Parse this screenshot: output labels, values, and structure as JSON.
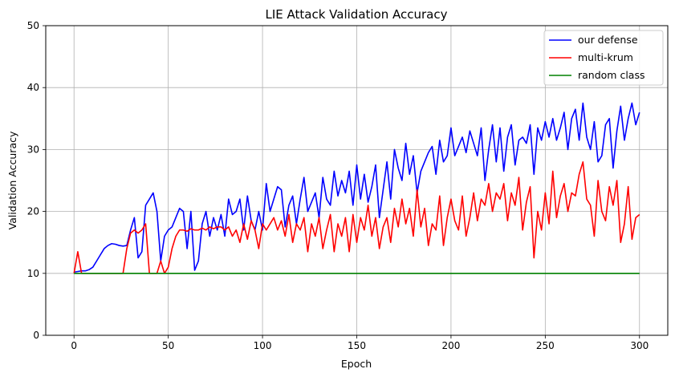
{
  "chart_data": {
    "type": "line",
    "title": "LIE Attack Validation Accuracy",
    "xlabel": "Epoch",
    "ylabel": "Validation Accuracy",
    "xlim": [
      -15,
      315
    ],
    "ylim": [
      0,
      50
    ],
    "xticks": [
      0,
      50,
      100,
      150,
      200,
      250,
      300
    ],
    "yticks": [
      0,
      10,
      20,
      30,
      40,
      50
    ],
    "grid": true,
    "legend_position": "top-right",
    "series": [
      {
        "name": "our defense",
        "color": "#0000ff",
        "x": [
          0,
          2,
          4,
          6,
          8,
          10,
          12,
          14,
          16,
          18,
          20,
          22,
          24,
          26,
          28,
          30,
          32,
          34,
          36,
          38,
          40,
          42,
          44,
          46,
          48,
          50,
          52,
          54,
          56,
          58,
          60,
          62,
          64,
          66,
          68,
          70,
          72,
          74,
          76,
          78,
          80,
          82,
          84,
          86,
          88,
          90,
          92,
          94,
          96,
          98,
          100,
          102,
          104,
          106,
          108,
          110,
          112,
          114,
          116,
          118,
          120,
          122,
          124,
          126,
          128,
          130,
          132,
          134,
          136,
          138,
          140,
          142,
          144,
          146,
          148,
          150,
          152,
          154,
          156,
          158,
          160,
          162,
          164,
          166,
          168,
          170,
          172,
          174,
          176,
          178,
          180,
          182,
          184,
          186,
          188,
          190,
          192,
          194,
          196,
          198,
          200,
          202,
          204,
          206,
          208,
          210,
          212,
          214,
          216,
          218,
          220,
          222,
          224,
          226,
          228,
          230,
          232,
          234,
          236,
          238,
          240,
          242,
          244,
          246,
          248,
          250,
          252,
          254,
          256,
          258,
          260,
          262,
          264,
          266,
          268,
          270,
          272,
          274,
          276,
          278,
          280,
          282,
          284,
          286,
          288,
          290,
          292,
          294,
          296,
          298,
          300
        ],
        "values": [
          10.2,
          10.3,
          10.4,
          10.4,
          10.6,
          11.0,
          12.0,
          13.0,
          14.0,
          14.5,
          14.8,
          14.7,
          14.5,
          14.4,
          14.5,
          17.0,
          19.0,
          12.5,
          13.5,
          21.0,
          22.0,
          23.0,
          20.0,
          12.0,
          16.0,
          17.0,
          17.5,
          19.0,
          20.5,
          20.0,
          14.0,
          20.0,
          10.5,
          12.0,
          18.0,
          20.0,
          16.0,
          19.0,
          17.0,
          19.5,
          16.0,
          22.0,
          19.5,
          20.0,
          22.0,
          17.0,
          22.5,
          18.5,
          17.0,
          20.0,
          17.0,
          24.5,
          20.0,
          22.0,
          24.0,
          23.5,
          17.5,
          21.0,
          22.5,
          18.0,
          22.0,
          25.5,
          20.0,
          21.5,
          23.0,
          19.0,
          25.5,
          22.0,
          21.0,
          26.5,
          22.5,
          25.0,
          23.0,
          26.5,
          21.0,
          27.5,
          22.0,
          26.0,
          21.5,
          24.0,
          27.5,
          19.0,
          23.5,
          28.0,
          22.0,
          30.0,
          27.0,
          25.0,
          31.0,
          26.0,
          29.0,
          23.0,
          26.5,
          28.0,
          29.5,
          30.5,
          26.0,
          31.5,
          28.0,
          29.0,
          33.5,
          29.0,
          30.5,
          32.0,
          29.5,
          33.0,
          31.0,
          29.0,
          33.5,
          25.0,
          30.0,
          34.0,
          28.0,
          33.5,
          26.5,
          32.0,
          34.0,
          27.5,
          31.5,
          32.0,
          31.0,
          34.0,
          26.0,
          33.5,
          31.5,
          34.5,
          32.0,
          35.0,
          31.5,
          33.5,
          36.0,
          30.0,
          35.0,
          36.5,
          31.5,
          37.5,
          32.0,
          30.0,
          34.5,
          28.0,
          29.0,
          34.0,
          35.0,
          27.0,
          33.0,
          37.0,
          31.5,
          35.0,
          37.5,
          34.0,
          36.0
        ]
      },
      {
        "name": "multi-krum",
        "color": "#ff0000",
        "x": [
          0,
          2,
          4,
          6,
          8,
          10,
          12,
          14,
          16,
          18,
          20,
          22,
          24,
          26,
          28,
          30,
          32,
          34,
          36,
          38,
          40,
          42,
          44,
          46,
          48,
          50,
          52,
          54,
          56,
          58,
          60,
          62,
          64,
          66,
          68,
          70,
          72,
          74,
          76,
          78,
          80,
          82,
          84,
          86,
          88,
          90,
          92,
          94,
          96,
          98,
          100,
          102,
          104,
          106,
          108,
          110,
          112,
          114,
          116,
          118,
          120,
          122,
          124,
          126,
          128,
          130,
          132,
          134,
          136,
          138,
          140,
          142,
          144,
          146,
          148,
          150,
          152,
          154,
          156,
          158,
          160,
          162,
          164,
          166,
          168,
          170,
          172,
          174,
          176,
          178,
          180,
          182,
          184,
          186,
          188,
          190,
          192,
          194,
          196,
          198,
          200,
          202,
          204,
          206,
          208,
          210,
          212,
          214,
          216,
          218,
          220,
          222,
          224,
          226,
          228,
          230,
          232,
          234,
          236,
          238,
          240,
          242,
          244,
          246,
          248,
          250,
          252,
          254,
          256,
          258,
          260,
          262,
          264,
          266,
          268,
          270,
          272,
          274,
          276,
          278,
          280,
          282,
          284,
          286,
          288,
          290,
          292,
          294,
          296,
          298,
          300
        ],
        "values": [
          10.0,
          13.5,
          10.0,
          10.0,
          10.0,
          10.0,
          10.0,
          10.0,
          10.0,
          10.0,
          10.0,
          10.0,
          10.0,
          10.0,
          14.0,
          16.5,
          17.0,
          16.5,
          17.0,
          18.0,
          10.0,
          10.0,
          10.0,
          12.0,
          10.0,
          11.0,
          14.0,
          16.0,
          17.0,
          17.0,
          16.8,
          17.2,
          17.0,
          17.0,
          17.3,
          17.0,
          17.5,
          17.2,
          17.5,
          17.5,
          17.0,
          17.5,
          16.0,
          17.0,
          15.0,
          18.0,
          15.5,
          18.5,
          17.0,
          14.0,
          18.0,
          17.0,
          18.0,
          19.0,
          17.0,
          18.5,
          16.0,
          19.5,
          15.0,
          18.0,
          17.0,
          19.0,
          13.5,
          18.0,
          16.0,
          19.0,
          14.0,
          17.0,
          19.5,
          13.5,
          18.0,
          16.0,
          19.0,
          13.5,
          19.5,
          15.0,
          19.0,
          17.0,
          21.0,
          16.0,
          19.0,
          14.0,
          17.5,
          19.0,
          15.0,
          20.5,
          17.5,
          22.0,
          18.0,
          20.5,
          16.0,
          23.5,
          17.5,
          20.5,
          14.5,
          18.0,
          17.0,
          22.5,
          14.5,
          19.0,
          22.0,
          18.5,
          17.0,
          22.5,
          16.0,
          19.0,
          23.0,
          18.5,
          22.0,
          21.0,
          24.5,
          20.0,
          23.0,
          22.0,
          24.5,
          18.5,
          23.0,
          21.0,
          25.5,
          17.0,
          21.5,
          24.0,
          12.5,
          20.0,
          17.0,
          23.0,
          18.0,
          26.5,
          19.0,
          22.5,
          24.5,
          20.0,
          23.0,
          22.5,
          26.0,
          28.0,
          22.0,
          21.0,
          16.0,
          25.0,
          20.0,
          18.5,
          24.0,
          21.0,
          25.0,
          15.0,
          18.0,
          24.0,
          15.5,
          19.0,
          19.5
        ]
      },
      {
        "name": "random class",
        "color": "#008000",
        "x": [
          0,
          300
        ],
        "values": [
          10,
          10
        ]
      }
    ]
  }
}
